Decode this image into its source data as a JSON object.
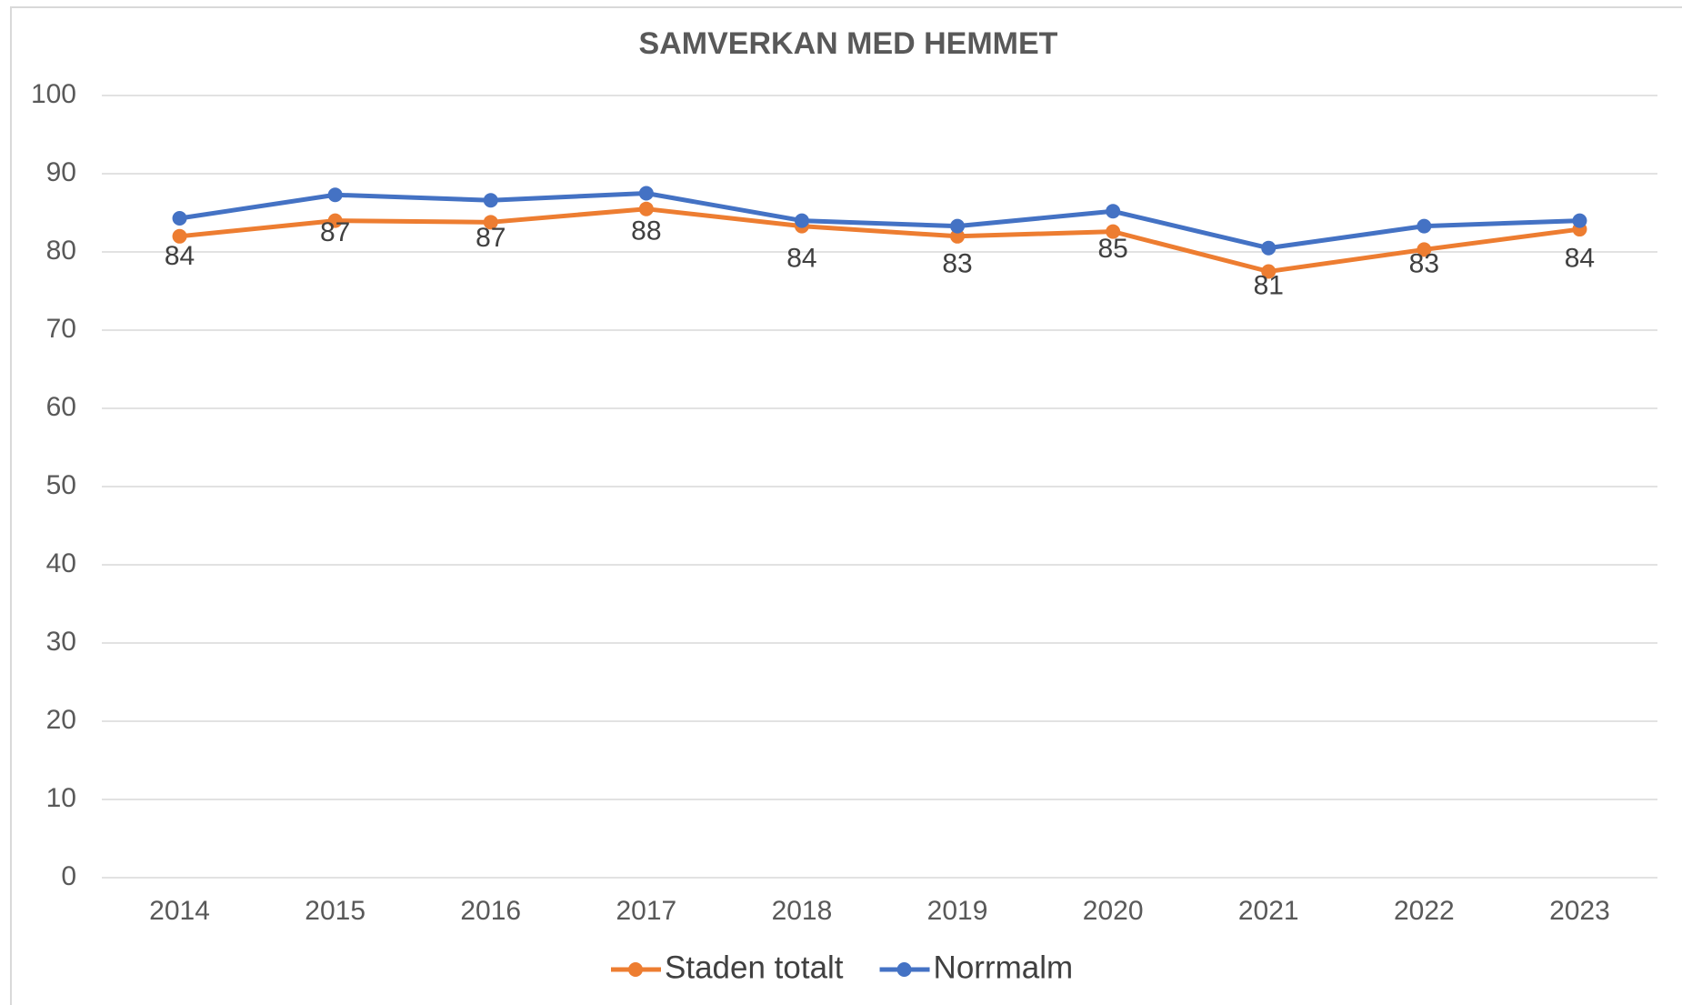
{
  "chart_data": {
    "type": "line",
    "title": "SAMVERKAN MED HEMMET",
    "categories": [
      "2014",
      "2015",
      "2016",
      "2017",
      "2018",
      "2019",
      "2020",
      "2021",
      "2022",
      "2023"
    ],
    "series": [
      {
        "name": "Staden totalt",
        "color": "#ed7d31",
        "values": [
          82,
          84,
          83.8,
          85.5,
          83.3,
          82,
          82.6,
          77.5,
          80.3,
          82.9
        ]
      },
      {
        "name": "Norrmalm",
        "color": "#4472c4",
        "values": [
          84.3,
          87.3,
          86.6,
          87.5,
          84,
          83.3,
          85.2,
          80.5,
          83.3,
          84
        ],
        "value_labels": [
          "84",
          "87",
          "87",
          "88",
          "84",
          "83",
          "85",
          "81",
          "83",
          "84"
        ]
      }
    ],
    "ylim": [
      0,
      100
    ],
    "yticks": [
      0,
      10,
      20,
      30,
      40,
      50,
      60,
      70,
      80,
      90,
      100
    ],
    "grid": true,
    "legend": "bottom"
  }
}
